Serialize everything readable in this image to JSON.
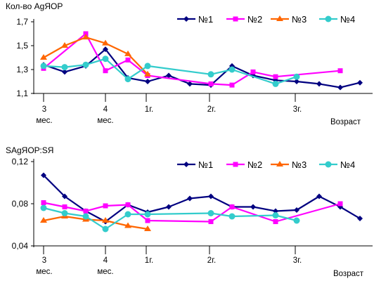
{
  "chart_data": [
    {
      "type": "line",
      "title": "Кол-во AgЯОР",
      "xlabel": "Возраст",
      "ylabel": "",
      "ylim": [
        1.1,
        1.7
      ],
      "yticks": [
        "1,1",
        "1,3",
        "1,5",
        "1,7"
      ],
      "xticks": [
        {
          "pos": 0,
          "line1": "3",
          "line2": "мес."
        },
        {
          "pos": 3,
          "line1": "4",
          "line2": "мес."
        },
        {
          "pos": 5,
          "line1": "1г.",
          "line2": ""
        },
        {
          "pos": 8,
          "line1": "2г.",
          "line2": ""
        },
        {
          "pos": 12,
          "line1": "3г.",
          "line2": ""
        }
      ],
      "grid": false,
      "legend_position": "top-right",
      "series": [
        {
          "name": "№1",
          "color": "#000080",
          "marker": "diamond",
          "x": [
            0,
            1,
            2,
            3,
            4,
            5,
            6,
            7,
            8,
            9,
            10,
            11,
            12,
            13,
            14,
            15
          ],
          "values": [
            1.34,
            1.28,
            1.33,
            1.47,
            1.23,
            1.2,
            1.25,
            1.18,
            1.17,
            1.33,
            1.25,
            1.21,
            1.2,
            1.18,
            1.15,
            1.19
          ]
        },
        {
          "name": "№2",
          "color": "#ff00ff",
          "marker": "square",
          "x": [
            0,
            2,
            3,
            4,
            5,
            8,
            9,
            10,
            11,
            14
          ],
          "values": [
            1.31,
            1.6,
            1.29,
            1.38,
            1.25,
            1.18,
            1.17,
            1.28,
            1.24,
            1.29
          ]
        },
        {
          "name": "№3",
          "color": "#ff6600",
          "marker": "triangle",
          "x": [
            0,
            1,
            2,
            3,
            4,
            5
          ],
          "values": [
            1.4,
            1.5,
            1.57,
            1.52,
            1.43,
            1.26
          ]
        },
        {
          "name": "№4",
          "color": "#33cccc",
          "marker": "circle",
          "x": [
            0,
            1,
            2,
            3,
            4,
            5,
            8,
            9,
            11,
            12
          ],
          "values": [
            1.33,
            1.32,
            1.34,
            1.39,
            1.22,
            1.33,
            1.26,
            1.3,
            1.18,
            1.24
          ]
        }
      ]
    },
    {
      "type": "line",
      "title": "SAgЯОР:SЯ",
      "xlabel": "Возраст",
      "ylabel": "",
      "ylim": [
        0.04,
        0.12
      ],
      "yticks": [
        "0,04",
        "0,08",
        "0,12"
      ],
      "xticks": [
        {
          "pos": 0,
          "line1": "3",
          "line2": "мес."
        },
        {
          "pos": 3,
          "line1": "4",
          "line2": "мес."
        },
        {
          "pos": 5,
          "line1": "1г.",
          "line2": ""
        },
        {
          "pos": 8,
          "line1": "2г.",
          "line2": ""
        },
        {
          "pos": 12,
          "line1": "3г.",
          "line2": ""
        }
      ],
      "grid": false,
      "legend_position": "top-right",
      "series": [
        {
          "name": "№1",
          "color": "#000080",
          "marker": "diamond",
          "x": [
            0,
            1,
            2,
            3,
            4,
            5,
            6,
            7,
            8,
            9,
            10,
            11,
            12,
            13,
            14,
            15
          ],
          "values": [
            0.107,
            0.087,
            0.073,
            0.063,
            0.079,
            0.072,
            0.077,
            0.085,
            0.087,
            0.077,
            0.077,
            0.073,
            0.074,
            0.087,
            0.077,
            0.066
          ]
        },
        {
          "name": "№2",
          "color": "#ff00ff",
          "marker": "square",
          "x": [
            0,
            1,
            2,
            3,
            4,
            5,
            8,
            9,
            11,
            14
          ],
          "values": [
            0.081,
            0.077,
            0.073,
            0.078,
            0.079,
            0.064,
            0.063,
            0.077,
            0.063,
            0.08
          ]
        },
        {
          "name": "№3",
          "color": "#ff6600",
          "marker": "triangle",
          "x": [
            0,
            1,
            2,
            3,
            4,
            5
          ],
          "values": [
            0.064,
            0.068,
            0.065,
            0.064,
            0.059,
            0.056
          ]
        },
        {
          "name": "№4",
          "color": "#33cccc",
          "marker": "circle",
          "x": [
            0,
            1,
            2,
            3,
            4,
            5,
            8,
            9,
            11,
            12
          ],
          "values": [
            0.076,
            0.071,
            0.068,
            0.056,
            0.07,
            0.07,
            0.071,
            0.068,
            0.069,
            0.064
          ]
        }
      ]
    }
  ]
}
